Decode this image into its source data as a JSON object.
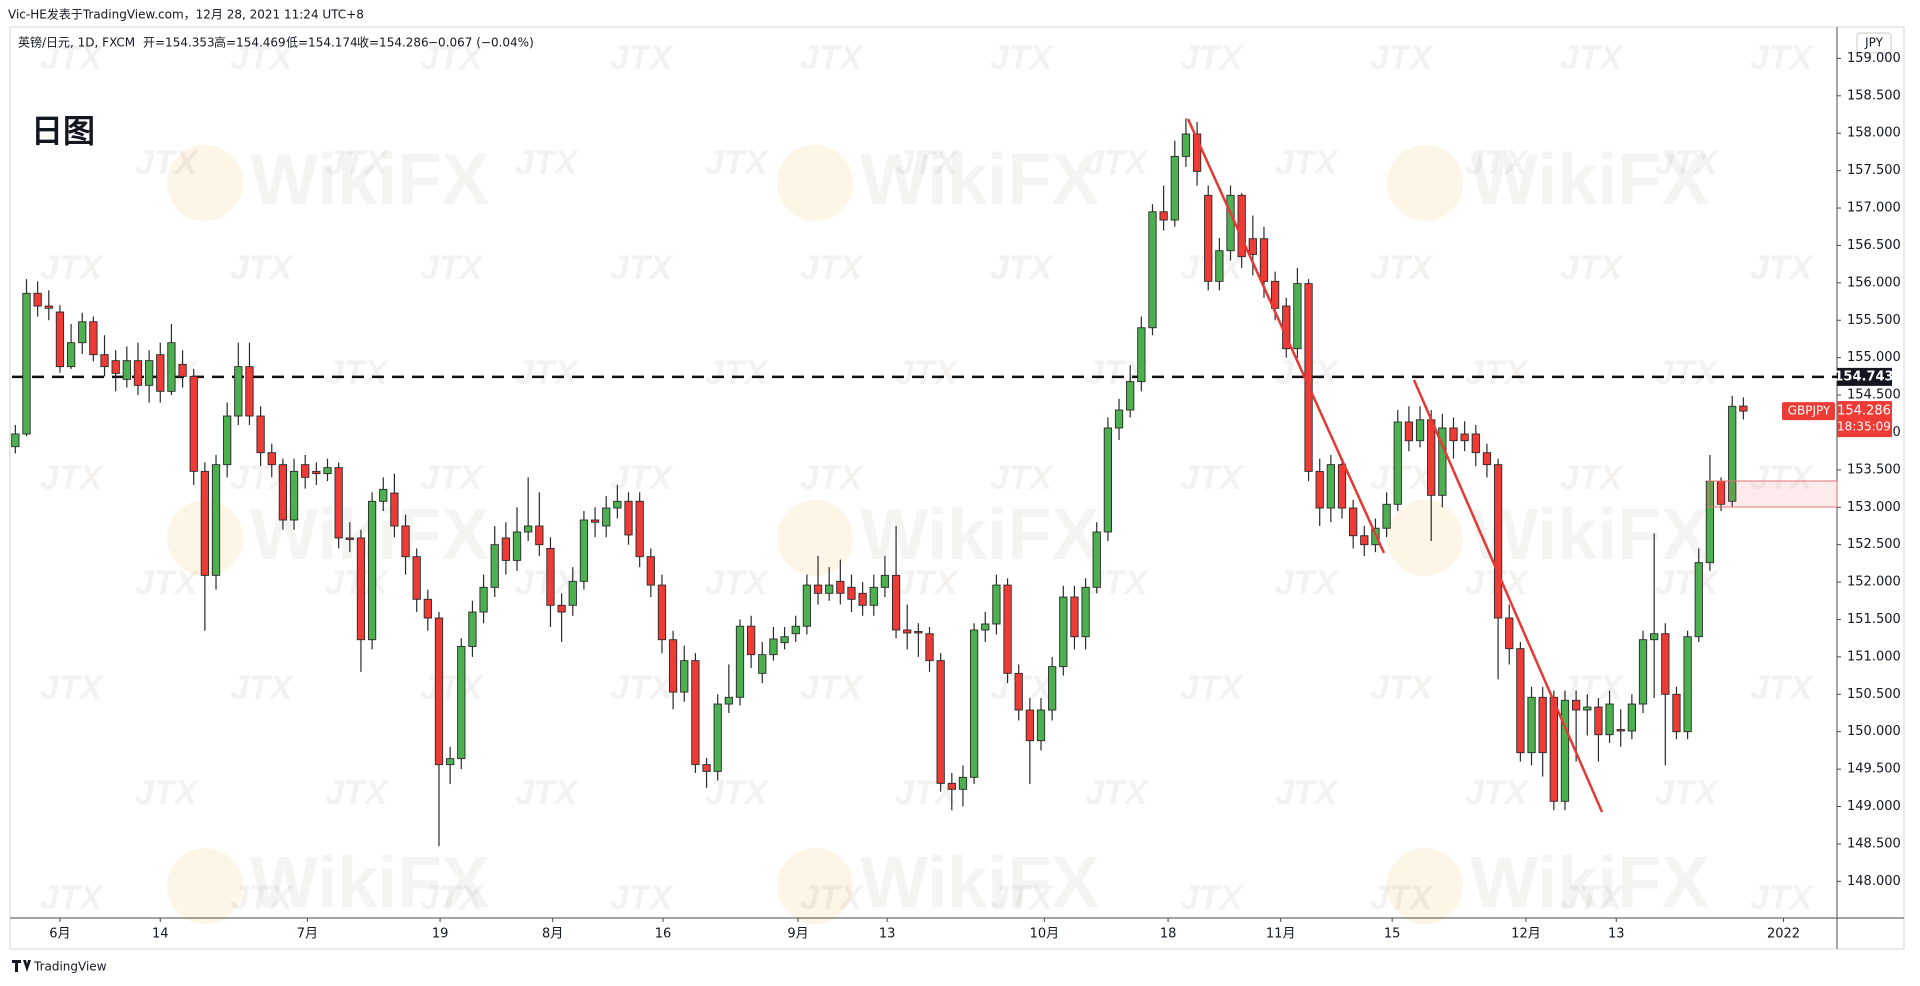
{
  "attribution": "Vic-HE发表于TradingView.com，12月 28, 2021 11:24 UTC+8",
  "legend": {
    "symbol": "英镑/日元, 1D, FXCM",
    "open": "开=154.353",
    "high": "高=154.469",
    "low": "低=154.174",
    "close": "收=154.286",
    "change": "−0.067 (−0.04%)"
  },
  "label": "日图",
  "currency": "JPY",
  "footer": "TradingView",
  "watermarks": [
    "WikiFX",
    "JTX"
  ],
  "chart_data": {
    "type": "candlestick",
    "symbol": "GBPJPY",
    "up_color": "#4caf50",
    "down_color": "#ef3b36",
    "wick_color": "#2a2a2a",
    "grid": false,
    "horizontal_line": 154.743,
    "last_price": 154.286,
    "countdown": "18:35:09",
    "xlim": [
      -0.3,
      163.4
    ],
    "xticks": [
      {
        "value": 4,
        "label": "6月"
      },
      {
        "value": 13,
        "label": "14"
      },
      {
        "value": 26.2,
        "label": "7月"
      },
      {
        "value": 38.1,
        "label": "19"
      },
      {
        "value": 48.2,
        "label": "8月"
      },
      {
        "value": 58.1,
        "label": "16"
      },
      {
        "value": 70.2,
        "label": "9月"
      },
      {
        "value": 78.2,
        "label": "13"
      },
      {
        "value": 92.3,
        "label": "10月"
      },
      {
        "value": 103.4,
        "label": "18"
      },
      {
        "value": 113.5,
        "label": "11月"
      },
      {
        "value": 123.5,
        "label": "15"
      },
      {
        "value": 135.5,
        "label": "12月"
      },
      {
        "value": 143.6,
        "label": "13"
      },
      {
        "value": 158.6,
        "label": "2022"
      }
    ],
    "ylim": [
      147.51,
      159.42
    ],
    "yticks": [
      {
        "value": 148,
        "label": "148.000"
      },
      {
        "value": 148.5,
        "label": "148.500"
      },
      {
        "value": 149,
        "label": "149.000"
      },
      {
        "value": 149.5,
        "label": "149.500"
      },
      {
        "value": 150,
        "label": "150.000"
      },
      {
        "value": 150.5,
        "label": "150.500"
      },
      {
        "value": 151,
        "label": "151.000"
      },
      {
        "value": 151.5,
        "label": "151.500"
      },
      {
        "value": 152,
        "label": "152.000"
      },
      {
        "value": 152.5,
        "label": "152.500"
      },
      {
        "value": 153,
        "label": "153.000"
      },
      {
        "value": 153.5,
        "label": "153.500"
      },
      {
        "value": 154,
        "label": "154.000"
      },
      {
        "value": 154.5,
        "label": "154.500"
      },
      {
        "value": 155,
        "label": "155.000"
      },
      {
        "value": 155.5,
        "label": "155.500"
      },
      {
        "value": 156,
        "label": "156.000"
      },
      {
        "value": 156.5,
        "label": "156.500"
      },
      {
        "value": 157,
        "label": "157.000"
      },
      {
        "value": 157.5,
        "label": "157.500"
      },
      {
        "value": 158,
        "label": "158.000"
      },
      {
        "value": 158.5,
        "label": "158.500"
      },
      {
        "value": 159,
        "label": "159.000"
      }
    ],
    "ohlc": [
      [
        153.81,
        154.1,
        153.72,
        153.98
      ],
      [
        153.98,
        156.05,
        153.95,
        155.86
      ],
      [
        155.86,
        156.02,
        155.55,
        155.69
      ],
      [
        155.69,
        155.9,
        155.5,
        155.66
      ],
      [
        155.61,
        155.7,
        154.8,
        154.88
      ],
      [
        154.88,
        155.45,
        154.85,
        155.2
      ],
      [
        155.2,
        155.6,
        155.05,
        155.48
      ],
      [
        155.48,
        155.55,
        154.95,
        155.04
      ],
      [
        155.04,
        155.3,
        154.75,
        154.88
      ],
      [
        154.96,
        155.1,
        154.55,
        154.79
      ],
      [
        154.71,
        155.15,
        154.6,
        154.96
      ],
      [
        154.96,
        155.2,
        154.5,
        154.63
      ],
      [
        154.63,
        155.1,
        154.4,
        154.96
      ],
      [
        155.04,
        155.2,
        154.4,
        154.55
      ],
      [
        154.55,
        155.45,
        154.5,
        155.2
      ],
      [
        154.91,
        155.1,
        154.6,
        154.75
      ],
      [
        154.75,
        154.85,
        153.3,
        153.48
      ],
      [
        153.48,
        153.6,
        151.35,
        152.09
      ],
      [
        152.09,
        153.7,
        151.9,
        153.57
      ],
      [
        153.57,
        154.4,
        153.4,
        154.22
      ],
      [
        154.22,
        155.2,
        154.1,
        154.88
      ],
      [
        154.88,
        155.2,
        154.1,
        154.22
      ],
      [
        154.22,
        154.35,
        153.55,
        153.73
      ],
      [
        153.73,
        153.85,
        153.4,
        153.57
      ],
      [
        153.57,
        153.65,
        152.7,
        152.83
      ],
      [
        152.83,
        153.65,
        152.7,
        153.48
      ],
      [
        153.57,
        153.7,
        153.25,
        153.4
      ],
      [
        153.48,
        153.6,
        153.3,
        153.45
      ],
      [
        153.45,
        153.65,
        153.35,
        153.53
      ],
      [
        153.53,
        153.6,
        152.45,
        152.59
      ],
      [
        152.59,
        152.8,
        152.4,
        152.57
      ],
      [
        152.59,
        152.7,
        150.8,
        151.23
      ],
      [
        151.23,
        153.2,
        151.1,
        153.08
      ],
      [
        153.08,
        153.4,
        152.95,
        153.24
      ],
      [
        153.19,
        153.45,
        152.6,
        152.75
      ],
      [
        152.75,
        152.9,
        152.1,
        152.34
      ],
      [
        152.34,
        152.45,
        151.6,
        151.77
      ],
      [
        151.77,
        151.9,
        151.35,
        151.52
      ],
      [
        151.52,
        151.6,
        148.47,
        149.56
      ],
      [
        149.56,
        149.8,
        149.3,
        149.64
      ],
      [
        149.64,
        151.25,
        149.5,
        151.14
      ],
      [
        151.14,
        151.75,
        151.0,
        151.6
      ],
      [
        151.6,
        152.1,
        151.45,
        151.93
      ],
      [
        151.93,
        152.75,
        151.8,
        152.5
      ],
      [
        152.59,
        152.8,
        152.1,
        152.29
      ],
      [
        152.29,
        153.0,
        152.15,
        152.67
      ],
      [
        152.67,
        153.4,
        152.55,
        152.75
      ],
      [
        152.75,
        153.2,
        152.35,
        152.5
      ],
      [
        152.45,
        152.6,
        151.4,
        151.69
      ],
      [
        151.69,
        151.85,
        151.2,
        151.6
      ],
      [
        151.69,
        152.2,
        151.55,
        152.01
      ],
      [
        152.01,
        152.95,
        151.9,
        152.83
      ],
      [
        152.83,
        153.0,
        152.6,
        152.8
      ],
      [
        152.75,
        153.15,
        152.6,
        152.99
      ],
      [
        152.99,
        153.3,
        152.85,
        153.08
      ],
      [
        153.08,
        153.2,
        152.5,
        152.63
      ],
      [
        153.08,
        153.2,
        152.2,
        152.34
      ],
      [
        152.34,
        152.45,
        151.8,
        151.96
      ],
      [
        151.96,
        152.1,
        151.05,
        151.23
      ],
      [
        151.23,
        151.35,
        150.3,
        150.53
      ],
      [
        150.53,
        151.15,
        150.4,
        150.95
      ],
      [
        150.95,
        151.05,
        149.45,
        149.56
      ],
      [
        149.56,
        149.65,
        149.25,
        149.47
      ],
      [
        149.47,
        150.5,
        149.35,
        150.37
      ],
      [
        150.37,
        150.9,
        150.25,
        150.46
      ],
      [
        150.46,
        151.5,
        150.35,
        151.41
      ],
      [
        151.41,
        151.55,
        150.85,
        151.03
      ],
      [
        150.78,
        151.2,
        150.65,
        151.03
      ],
      [
        151.03,
        151.4,
        150.95,
        151.24
      ],
      [
        151.19,
        151.4,
        151.1,
        151.27
      ],
      [
        151.31,
        151.55,
        151.2,
        151.41
      ],
      [
        151.41,
        152.1,
        151.3,
        151.96
      ],
      [
        151.96,
        152.35,
        151.7,
        151.85
      ],
      [
        151.85,
        152.2,
        151.75,
        151.96
      ],
      [
        152.01,
        152.3,
        151.7,
        151.85
      ],
      [
        151.93,
        152.1,
        151.6,
        151.77
      ],
      [
        151.85,
        152.0,
        151.55,
        151.69
      ],
      [
        151.69,
        152.1,
        151.55,
        151.93
      ],
      [
        151.93,
        152.35,
        151.8,
        152.09
      ],
      [
        152.09,
        152.75,
        151.25,
        151.36
      ],
      [
        151.36,
        151.7,
        151.1,
        151.32
      ],
      [
        151.34,
        151.45,
        151.0,
        151.32
      ],
      [
        151.31,
        151.4,
        150.8,
        150.95
      ],
      [
        150.95,
        151.05,
        149.2,
        149.31
      ],
      [
        149.31,
        149.45,
        148.95,
        149.23
      ],
      [
        149.23,
        149.55,
        149.0,
        149.39
      ],
      [
        149.39,
        151.45,
        149.3,
        151.36
      ],
      [
        151.36,
        151.6,
        151.2,
        151.44
      ],
      [
        151.44,
        152.1,
        151.3,
        151.96
      ],
      [
        151.96,
        152.05,
        150.65,
        150.78
      ],
      [
        150.78,
        150.9,
        150.15,
        150.29
      ],
      [
        150.29,
        150.45,
        149.3,
        149.88
      ],
      [
        149.88,
        150.45,
        149.75,
        150.29
      ],
      [
        150.29,
        151.0,
        150.15,
        150.87
      ],
      [
        150.87,
        151.95,
        150.75,
        151.8
      ],
      [
        151.8,
        151.95,
        151.1,
        151.27
      ],
      [
        151.27,
        152.05,
        151.1,
        151.93
      ],
      [
        151.93,
        152.8,
        151.85,
        152.67
      ],
      [
        152.67,
        154.2,
        152.55,
        154.06
      ],
      [
        154.06,
        154.45,
        153.9,
        154.3
      ],
      [
        154.3,
        154.9,
        154.2,
        154.68
      ],
      [
        154.68,
        155.55,
        154.55,
        155.4
      ],
      [
        155.4,
        157.05,
        155.3,
        156.95
      ],
      [
        156.95,
        157.3,
        156.7,
        156.84
      ],
      [
        156.84,
        157.9,
        156.75,
        157.69
      ],
      [
        157.69,
        158.2,
        157.55,
        157.99
      ],
      [
        157.99,
        158.15,
        157.3,
        157.49
      ],
      [
        157.17,
        157.3,
        155.9,
        156.02
      ],
      [
        156.02,
        156.6,
        155.9,
        156.43
      ],
      [
        156.43,
        157.3,
        156.3,
        157.17
      ],
      [
        157.17,
        157.2,
        156.2,
        156.35
      ],
      [
        156.59,
        156.9,
        156.1,
        156.38
      ],
      [
        156.59,
        156.75,
        155.8,
        156.02
      ],
      [
        156.02,
        156.15,
        155.5,
        155.66
      ],
      [
        155.69,
        155.8,
        155.0,
        155.12
      ],
      [
        155.12,
        156.2,
        155.0,
        155.99
      ],
      [
        155.99,
        156.05,
        153.35,
        153.48
      ],
      [
        153.48,
        153.65,
        152.75,
        152.99
      ],
      [
        152.99,
        153.7,
        152.8,
        153.57
      ],
      [
        153.57,
        153.65,
        152.85,
        152.99
      ],
      [
        152.99,
        153.1,
        152.45,
        152.62
      ],
      [
        152.62,
        152.75,
        152.35,
        152.5
      ],
      [
        152.5,
        152.85,
        152.4,
        152.72
      ],
      [
        152.72,
        153.2,
        152.6,
        153.04
      ],
      [
        153.04,
        154.3,
        152.95,
        154.14
      ],
      [
        154.14,
        154.35,
        153.75,
        153.89
      ],
      [
        153.89,
        154.35,
        153.8,
        154.17
      ],
      [
        154.17,
        154.3,
        152.55,
        153.16
      ],
      [
        153.16,
        154.25,
        153.0,
        154.06
      ],
      [
        154.06,
        154.2,
        153.65,
        153.89
      ],
      [
        153.98,
        154.15,
        153.75,
        153.89
      ],
      [
        153.98,
        154.1,
        153.55,
        153.73
      ],
      [
        153.73,
        153.85,
        153.4,
        153.57
      ],
      [
        153.57,
        153.65,
        150.7,
        151.52
      ],
      [
        151.52,
        151.7,
        150.9,
        151.11
      ],
      [
        151.11,
        151.2,
        149.6,
        149.72
      ],
      [
        149.72,
        150.6,
        149.55,
        150.46
      ],
      [
        150.46,
        150.6,
        149.4,
        149.72
      ],
      [
        150.46,
        150.55,
        148.95,
        149.07
      ],
      [
        149.07,
        150.55,
        148.95,
        150.42
      ],
      [
        150.42,
        150.55,
        149.6,
        150.29
      ],
      [
        150.29,
        150.5,
        149.95,
        150.33
      ],
      [
        150.33,
        150.45,
        149.6,
        149.96
      ],
      [
        149.96,
        150.55,
        149.85,
        150.37
      ],
      [
        150.03,
        150.3,
        149.8,
        150.01
      ],
      [
        150.01,
        150.5,
        149.9,
        150.37
      ],
      [
        150.37,
        151.35,
        150.25,
        151.23
      ],
      [
        151.23,
        152.65,
        150.45,
        151.31
      ],
      [
        151.31,
        151.45,
        149.55,
        150.5
      ],
      [
        150.5,
        150.6,
        149.9,
        150.0
      ],
      [
        150.0,
        151.35,
        149.9,
        151.27
      ],
      [
        151.27,
        152.45,
        151.2,
        152.26
      ],
      [
        152.26,
        153.7,
        152.15,
        153.35
      ],
      [
        153.35,
        153.4,
        152.95,
        153.04
      ],
      [
        153.08,
        154.49,
        153.0,
        154.35
      ],
      [
        154.353,
        154.469,
        154.174,
        154.286
      ]
    ]
  }
}
